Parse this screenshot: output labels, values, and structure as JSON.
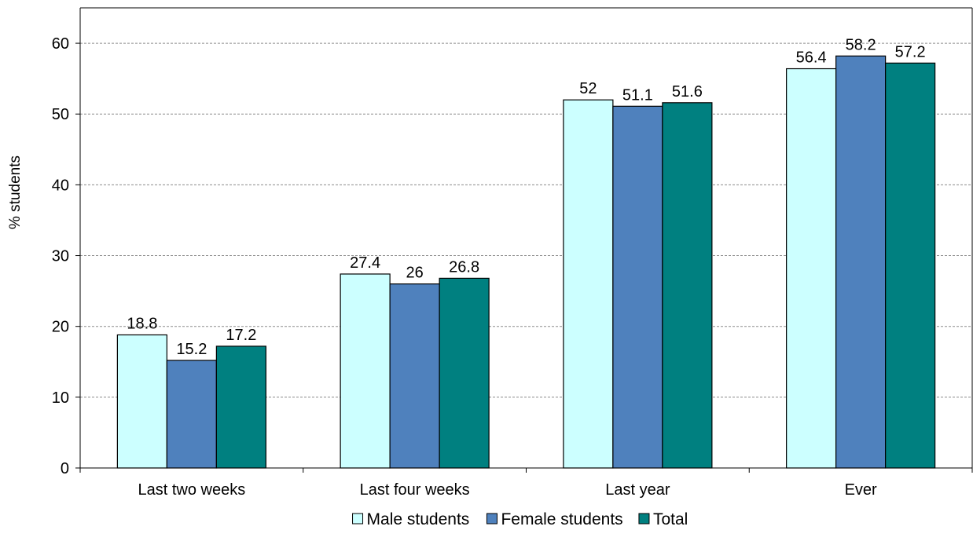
{
  "chart_data": {
    "type": "bar",
    "categories": [
      "Last two weeks",
      "Last four weeks",
      "Last year",
      "Ever"
    ],
    "series": [
      {
        "name": "Male students",
        "values": [
          18.8,
          27.4,
          52,
          56.4
        ],
        "color": "#ccffff"
      },
      {
        "name": "Female students",
        "values": [
          15.2,
          26,
          51.1,
          58.2
        ],
        "color": "#4f81bd"
      },
      {
        "name": "Total",
        "values": [
          17.2,
          26.8,
          51.6,
          57.2
        ],
        "color": "#008080"
      }
    ],
    "data_labels": [
      [
        "18.8",
        "27.4",
        "52",
        "56.4"
      ],
      [
        "15.2",
        "26",
        "51.1",
        "58.2"
      ],
      [
        "17.2",
        "26.8",
        "51.6",
        "57.2"
      ]
    ],
    "title": "",
    "xlabel": "",
    "ylabel": "% students",
    "ylim": [
      0,
      65
    ],
    "yticks": [
      0,
      10,
      20,
      30,
      40,
      50,
      60
    ],
    "ytick_labels": [
      "0",
      "10",
      "20",
      "30",
      "40",
      "50",
      "60"
    ],
    "grid": true,
    "grid_style": "dashed",
    "legend_position": "bottom-center"
  }
}
